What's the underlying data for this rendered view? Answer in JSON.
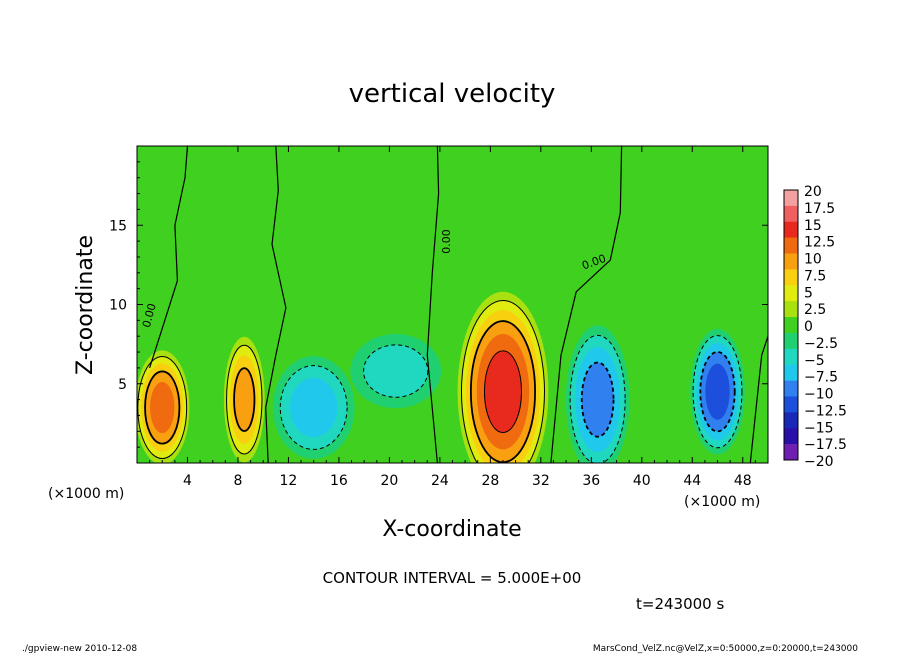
{
  "chart_data": {
    "type": "heatmap",
    "title": "vertical velocity",
    "xlabel": "X-coordinate",
    "ylabel": "Z-coordinate",
    "x_units": "(×1000 m)",
    "y_units": "(×1000 m)",
    "xlim": [
      0,
      50
    ],
    "ylim": [
      0,
      20
    ],
    "x_ticks": [
      4,
      8,
      12,
      16,
      20,
      24,
      28,
      32,
      36,
      40,
      44,
      48
    ],
    "y_ticks": [
      5,
      10,
      15
    ],
    "contour_interval_label": "CONTOUR INTERVAL = 5.000E+00",
    "time_label": "t=243000 s",
    "contour_zero_label": "0.00",
    "colorbar": {
      "labels": [
        "20",
        "17.5",
        "15",
        "12.5",
        "10",
        "7.5",
        "5",
        "2.5",
        "0",
        "−2.5",
        "−5",
        "−7.5",
        "−10",
        "−12.5",
        "−15",
        "−17.5",
        "−20"
      ],
      "colors": [
        "#f5a0a0",
        "#f06060",
        "#e82a1e",
        "#f06a10",
        "#f8a010",
        "#f8d010",
        "#e0ec10",
        "#a8e010",
        "#40d020",
        "#20d070",
        "#20d8c0",
        "#20c8ec",
        "#3080f0",
        "#1c50dc",
        "#1a28b8",
        "#2a10a8",
        "#7020b0"
      ]
    },
    "features": [
      {
        "x": 2.0,
        "z": 3.5,
        "peak": 12.5,
        "sx": 1.2,
        "sz": 2.0
      },
      {
        "x": 8.5,
        "z": 4.0,
        "peak": 10.0,
        "sx": 0.9,
        "sz": 2.2
      },
      {
        "x": 14.0,
        "z": 3.5,
        "peak": -7.5,
        "sx": 1.8,
        "sz": 1.8
      },
      {
        "x": 20.5,
        "z": 5.8,
        "peak": -5.0,
        "sx": 2.0,
        "sz": 1.3
      },
      {
        "x": 29.0,
        "z": 4.5,
        "peak": 15.0,
        "sx": 2.0,
        "sz": 3.5
      },
      {
        "x": 36.5,
        "z": 4.0,
        "peak": -10.0,
        "sx": 1.4,
        "sz": 2.6
      },
      {
        "x": 46.0,
        "z": 4.5,
        "peak": -12.5,
        "sx": 1.2,
        "sz": 2.2
      }
    ],
    "footer_left": "./gpview-new  2010-12-08",
    "footer_right": "MarsCond_VelZ.nc@VelZ,x=0:50000,z=0:20000,t=243000"
  }
}
